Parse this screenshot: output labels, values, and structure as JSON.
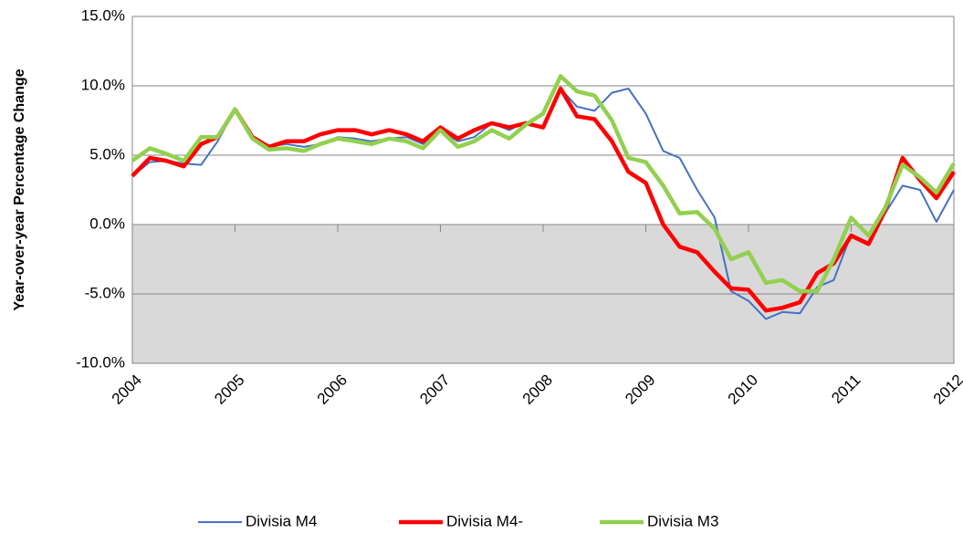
{
  "chart_data": {
    "type": "line",
    "ylabel": "Year-over-year Percentage Change",
    "x": [
      2004,
      2004.17,
      2004.33,
      2004.5,
      2004.67,
      2004.83,
      2005,
      2005.17,
      2005.33,
      2005.5,
      2005.67,
      2005.83,
      2006,
      2006.17,
      2006.33,
      2006.5,
      2006.67,
      2006.83,
      2007,
      2007.17,
      2007.33,
      2007.5,
      2007.67,
      2007.83,
      2008,
      2008.17,
      2008.33,
      2008.5,
      2008.67,
      2008.83,
      2009,
      2009.17,
      2009.33,
      2009.5,
      2009.67,
      2009.83,
      2010,
      2010.17,
      2010.33,
      2010.5,
      2010.67,
      2010.83,
      2011,
      2011.17,
      2011.33,
      2011.5,
      2011.67,
      2011.83,
      2012
    ],
    "series": [
      {
        "name": "Divisia M4",
        "color": "#4472c4",
        "values": [
          3.5,
          4.5,
          4.6,
          4.4,
          4.3,
          6.0,
          8.3,
          6.2,
          5.6,
          5.8,
          5.6,
          5.8,
          6.3,
          6.2,
          6.0,
          6.2,
          6.3,
          5.8,
          6.8,
          6.0,
          6.3,
          7.3,
          6.8,
          7.4,
          7.0,
          9.8,
          8.5,
          8.2,
          9.5,
          9.8,
          8.0,
          5.3,
          4.8,
          2.5,
          0.5,
          -4.8,
          -5.5,
          -6.8,
          -6.3,
          -6.4,
          -4.5,
          -4.0,
          -0.7,
          -1.3,
          0.8,
          2.8,
          2.5,
          0.2,
          2.5
        ]
      },
      {
        "name": "Divisia M4-",
        "color": "#ff0000",
        "values": [
          3.5,
          4.8,
          4.6,
          4.2,
          5.8,
          6.3,
          8.3,
          6.3,
          5.6,
          6.0,
          6.0,
          6.5,
          6.8,
          6.8,
          6.5,
          6.8,
          6.5,
          6.0,
          7.0,
          6.2,
          6.8,
          7.3,
          7.0,
          7.3,
          7.0,
          9.8,
          7.8,
          7.6,
          6.0,
          3.8,
          3.0,
          0.0,
          -1.6,
          -2.0,
          -3.4,
          -4.6,
          -4.7,
          -6.2,
          -6.0,
          -5.6,
          -3.5,
          -2.8,
          -0.8,
          -1.4,
          1.0,
          4.8,
          3.2,
          1.9,
          3.8
        ]
      },
      {
        "name": "Divisia M3",
        "color": "#92d050",
        "values": [
          4.6,
          5.5,
          5.1,
          4.6,
          6.3,
          6.3,
          8.3,
          6.2,
          5.4,
          5.5,
          5.3,
          5.8,
          6.2,
          6.0,
          5.8,
          6.2,
          6.0,
          5.5,
          6.8,
          5.6,
          6.0,
          6.8,
          6.2,
          7.2,
          8.0,
          10.7,
          9.6,
          9.3,
          7.5,
          4.8,
          4.5,
          2.8,
          0.8,
          0.9,
          -0.3,
          -2.5,
          -2.0,
          -4.2,
          -4.0,
          -4.8,
          -4.8,
          -2.5,
          0.5,
          -0.8,
          1.2,
          4.3,
          3.4,
          2.3,
          4.4
        ]
      }
    ],
    "xlim": [
      2004,
      2012
    ],
    "xticks": [
      2004,
      2005,
      2006,
      2007,
      2008,
      2009,
      2010,
      2011,
      2012
    ],
    "ylim": [
      -10,
      15
    ],
    "yticks": [
      {
        "value": -10,
        "label": "-10.0%"
      },
      {
        "value": -5,
        "label": "-5.0%"
      },
      {
        "value": 0,
        "label": "0.0%"
      },
      {
        "value": 5,
        "label": "5.0%"
      },
      {
        "value": 10,
        "label": "10.0%"
      },
      {
        "value": 15,
        "label": "15.0%"
      }
    ],
    "grid": true,
    "negative_shading": "#d9d9d9",
    "legend": "bottom"
  }
}
